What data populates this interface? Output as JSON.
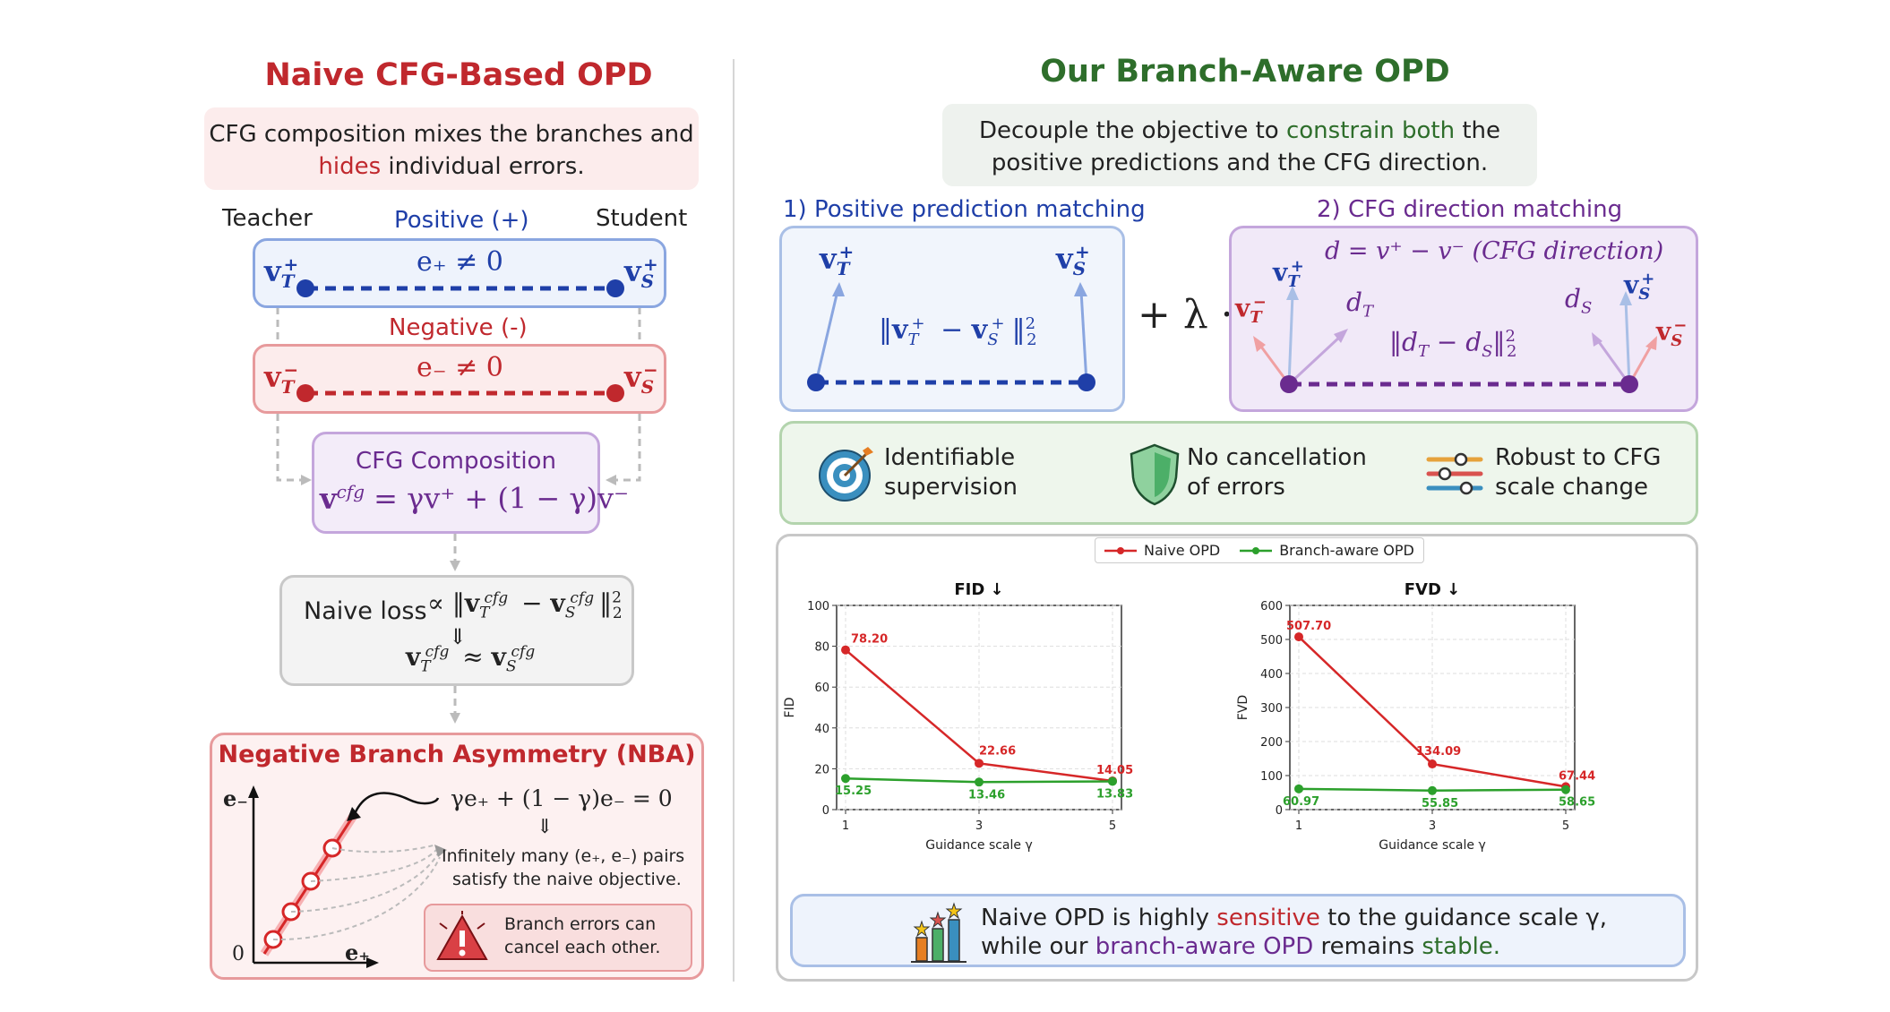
{
  "left": {
    "title": "Naive CFG-Based OPD",
    "intro_line1": "CFG composition mixes the branches and",
    "intro_hides": "hides",
    "intro_rest": "individual errors.",
    "teacher": "Teacher",
    "student": "Student",
    "positive": "Positive (+)",
    "negative": "Negative (-)",
    "e_pos": "e₊ ≠ 0",
    "e_neg": "e₋ ≠ 0",
    "vT_pos": "v",
    "cfg_title": "CFG Composition",
    "cfg_formula": "= γv⁺ + (1 − γ)v⁻",
    "naive_loss": "Naive loss",
    "naive_loss_formula": "∝ ‖v",
    "arrow_down": "⇓",
    "nba_title": "Negative Branch Asymmetry (NBA)",
    "nba_eq": "γe₊ + (1 − γ)e₋ = 0",
    "nba_line1": "Infinitely many (e₊, e₋) pairs",
    "nba_line2": "satisfy the naive objective.",
    "warn_line1": "Branch errors can",
    "warn_line2": "cancel each other.",
    "axis_y": "e₋",
    "axis_x": "e₊",
    "axis_origin": "0"
  },
  "right": {
    "title": "Our Branch-Aware OPD",
    "intro_pre": "Decouple the objective to",
    "intro_green": "constrain both",
    "intro_post": "the",
    "intro_line2": "positive predictions and the CFG direction.",
    "step1": "1) Positive prediction matching",
    "step2": "2) CFG direction matching",
    "pos_loss": "‖v",
    "plus_lambda": "+ λ ·",
    "d_def": "d = v⁺ − v⁻ (CFG direction)",
    "dir_loss": "‖d",
    "dT": "d",
    "dS": "d",
    "features": [
      {
        "icon": "target-icon",
        "line1": "Identifiable",
        "line2": "supervision"
      },
      {
        "icon": "shield-icon",
        "line1": "No cancellation",
        "line2": "of errors"
      },
      {
        "icon": "sliders-icon",
        "line1": "Robust to CFG",
        "line2": "scale change"
      }
    ],
    "conclusion_l1_pre": "Naive OPD is highly",
    "conclusion_l1_red": "sensitive",
    "conclusion_l1_post": "to the guidance scale γ,",
    "conclusion_l2_pre": "while our",
    "conclusion_l2_purple": "branch-aware OPD",
    "conclusion_l2_mid": "remains",
    "conclusion_l2_green": "stable."
  },
  "colors": {
    "red": "#c0282d",
    "green": "#2e6e2b",
    "blue": "#1f3fa8",
    "purple": "#6a2b8f",
    "naive_line": "#d62728",
    "aware_line": "#2ca02c"
  },
  "chart_data": [
    {
      "type": "line",
      "title": "FID ↓",
      "xlabel": "Guidance scale γ",
      "ylabel": "FID",
      "x": [
        1,
        3,
        5
      ],
      "ylim": [
        0,
        100
      ],
      "yticks": [
        0,
        20,
        40,
        60,
        80,
        100
      ],
      "series": [
        {
          "name": "Naive OPD",
          "values": [
            78.2,
            22.66,
            14.05
          ],
          "labels": [
            "78.20",
            "22.66",
            "14.05"
          ]
        },
        {
          "name": "Branch-aware OPD",
          "values": [
            15.25,
            13.46,
            13.83
          ],
          "labels": [
            "15.25",
            "13.46",
            "13.83"
          ]
        }
      ]
    },
    {
      "type": "line",
      "title": "FVD ↓",
      "xlabel": "Guidance scale γ",
      "ylabel": "FVD",
      "x": [
        1,
        3,
        5
      ],
      "ylim": [
        0,
        600
      ],
      "yticks": [
        0,
        100,
        200,
        300,
        400,
        500,
        600
      ],
      "series": [
        {
          "name": "Naive OPD",
          "values": [
            507.7,
            134.09,
            67.44
          ],
          "labels": [
            "507.70",
            "134.09",
            "67.44"
          ]
        },
        {
          "name": "Branch-aware OPD",
          "values": [
            60.97,
            55.85,
            58.65
          ],
          "labels": [
            "60.97",
            "55.85",
            "58.65"
          ]
        }
      ]
    }
  ]
}
